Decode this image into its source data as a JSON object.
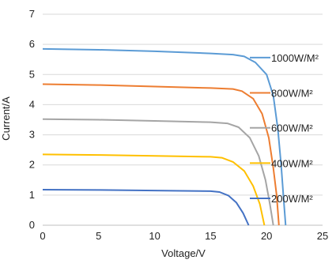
{
  "chart_data": {
    "type": "line",
    "title": "",
    "xlabel": "Voltage/V",
    "ylabel": "Current/A",
    "xlim": [
      0,
      25
    ],
    "ylim": [
      0,
      7
    ],
    "xticks": [
      0,
      5,
      10,
      15,
      20,
      25
    ],
    "yticks": [
      0,
      1,
      2,
      3,
      4,
      5,
      6,
      7
    ],
    "grid": "horizontal",
    "legend_position": "right, inline at curve knees",
    "series": [
      {
        "name": "1000W/M²",
        "color": "#5b9bd5",
        "points": [
          [
            0,
            5.85
          ],
          [
            5,
            5.82
          ],
          [
            10,
            5.77
          ],
          [
            15,
            5.7
          ],
          [
            17,
            5.66
          ],
          [
            18,
            5.6
          ],
          [
            19,
            5.4
          ],
          [
            20,
            5.0
          ],
          [
            20.6,
            4.3
          ],
          [
            21.0,
            3.2
          ],
          [
            21.3,
            2.0
          ],
          [
            21.5,
            1.0
          ],
          [
            21.7,
            0.0
          ]
        ]
      },
      {
        "name": "800W/M²",
        "color": "#ed7d31",
        "points": [
          [
            0,
            4.68
          ],
          [
            5,
            4.65
          ],
          [
            10,
            4.6
          ],
          [
            15,
            4.55
          ],
          [
            17,
            4.52
          ],
          [
            17.8,
            4.45
          ],
          [
            18.8,
            4.2
          ],
          [
            19.6,
            3.7
          ],
          [
            20.2,
            2.9
          ],
          [
            20.6,
            1.9
          ],
          [
            20.9,
            1.0
          ],
          [
            21.1,
            0.0
          ]
        ]
      },
      {
        "name": "600W/M²",
        "color": "#a5a5a5",
        "points": [
          [
            0,
            3.52
          ],
          [
            5,
            3.5
          ],
          [
            10,
            3.46
          ],
          [
            15,
            3.42
          ],
          [
            16.5,
            3.38
          ],
          [
            17.5,
            3.25
          ],
          [
            18.5,
            2.9
          ],
          [
            19.3,
            2.3
          ],
          [
            19.9,
            1.5
          ],
          [
            20.3,
            0.7
          ],
          [
            20.6,
            0.0
          ]
        ]
      },
      {
        "name": "400W/M²",
        "color": "#ffc000",
        "points": [
          [
            0,
            2.35
          ],
          [
            5,
            2.33
          ],
          [
            10,
            2.3
          ],
          [
            15,
            2.27
          ],
          [
            16,
            2.24
          ],
          [
            17,
            2.1
          ],
          [
            18,
            1.8
          ],
          [
            18.8,
            1.3
          ],
          [
            19.4,
            0.7
          ],
          [
            19.8,
            0.0
          ]
        ]
      },
      {
        "name": "200W/M²",
        "color": "#4472c4",
        "points": [
          [
            0,
            1.18
          ],
          [
            5,
            1.17
          ],
          [
            10,
            1.15
          ],
          [
            15,
            1.13
          ],
          [
            15.8,
            1.1
          ],
          [
            16.6,
            0.98
          ],
          [
            17.3,
            0.75
          ],
          [
            17.9,
            0.4
          ],
          [
            18.4,
            0.0
          ]
        ]
      }
    ]
  }
}
